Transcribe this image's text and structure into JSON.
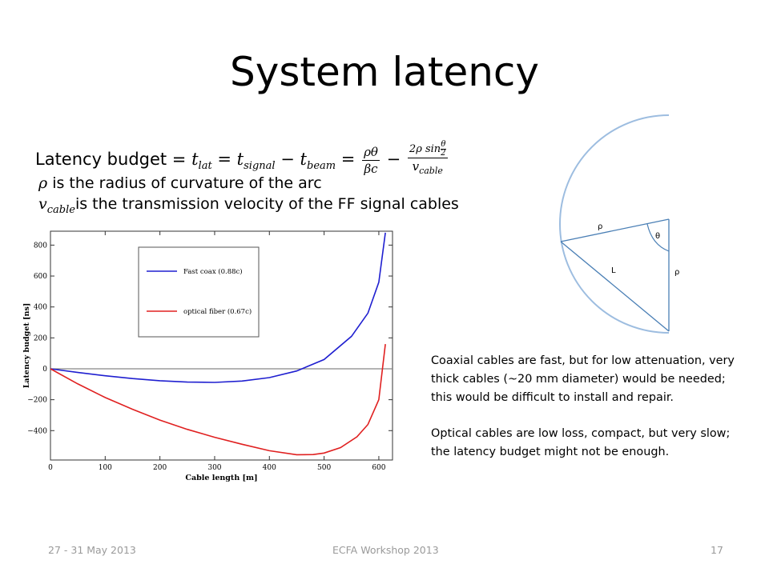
{
  "slide": {
    "title": "System latency",
    "formula": {
      "prefix": "Latency budget = ",
      "t_lat": "t",
      "lat_sub": "lat",
      "t_signal": "t",
      "signal_sub": "signal",
      "t_beam": "t",
      "beam_sub": "beam",
      "frac1_num": "ρθ",
      "frac1_den": "βc",
      "frac2_num": "2ρ sin",
      "frac2_num_theta": "θ",
      "frac2_num_two": "2",
      "frac2_den_v": "v",
      "frac2_den_sub": "cable"
    },
    "def_rho_symbol": "ρ",
    "def_rho_text": " is the radius of curvature of the arc",
    "def_v_symbol": "v",
    "def_v_sub": "cable",
    "def_v_text": "is the transmission velocity of the FF signal cables",
    "note_paragraph_1": "Coaxial cables are fast, but for low attenuation, very thick cables (~20 mm diameter) would be needed; this would be difficult to install and repair.",
    "note_paragraph_2": "Optical cables are low loss, compact, but very slow; the latency budget might not be enough.",
    "footer_date": "27 - 31 May 2013",
    "footer_event": "ECFA Workshop 2013",
    "footer_page": "17"
  },
  "diagram": {
    "label_rho_top": "ρ",
    "label_theta": "θ",
    "label_L": "L",
    "label_rho_right": "ρ",
    "arc_color": "#9dbde0",
    "line_color": "#4a7fb5"
  },
  "chart_data": {
    "type": "line",
    "title": "",
    "xlabel": "Cable length [m]",
    "ylabel": "Latency budget [ns]",
    "xlim": [
      0,
      625
    ],
    "ylim": [
      -590,
      890
    ],
    "xticks": [
      0,
      100,
      200,
      300,
      400,
      500,
      600
    ],
    "yticks": [
      -400,
      -200,
      0,
      200,
      400,
      600,
      800
    ],
    "ytick_labels": [
      "−400",
      "−200",
      "0",
      "200",
      "400",
      "600",
      "800"
    ],
    "legend_position": "top-center",
    "grid": false,
    "series": [
      {
        "name": "Fast coax (0.88c)",
        "color": "#1f1fd0",
        "x": [
          0,
          50,
          100,
          150,
          200,
          250,
          300,
          350,
          400,
          450,
          500,
          550,
          580,
          600,
          612
        ],
        "y": [
          0,
          -24,
          -45,
          -63,
          -77,
          -86,
          -88,
          -79,
          -57,
          -14,
          60,
          210,
          360,
          560,
          880
        ]
      },
      {
        "name": "optical fiber (0.67c)",
        "color": "#e02020",
        "x": [
          0,
          50,
          100,
          150,
          200,
          250,
          300,
          350,
          400,
          450,
          480,
          500,
          530,
          560,
          580,
          600,
          612
        ],
        "y": [
          0,
          -98,
          -186,
          -262,
          -332,
          -392,
          -443,
          -488,
          -530,
          -556,
          -555,
          -545,
          -510,
          -440,
          -360,
          -200,
          160
        ]
      }
    ],
    "baseline": 0
  }
}
